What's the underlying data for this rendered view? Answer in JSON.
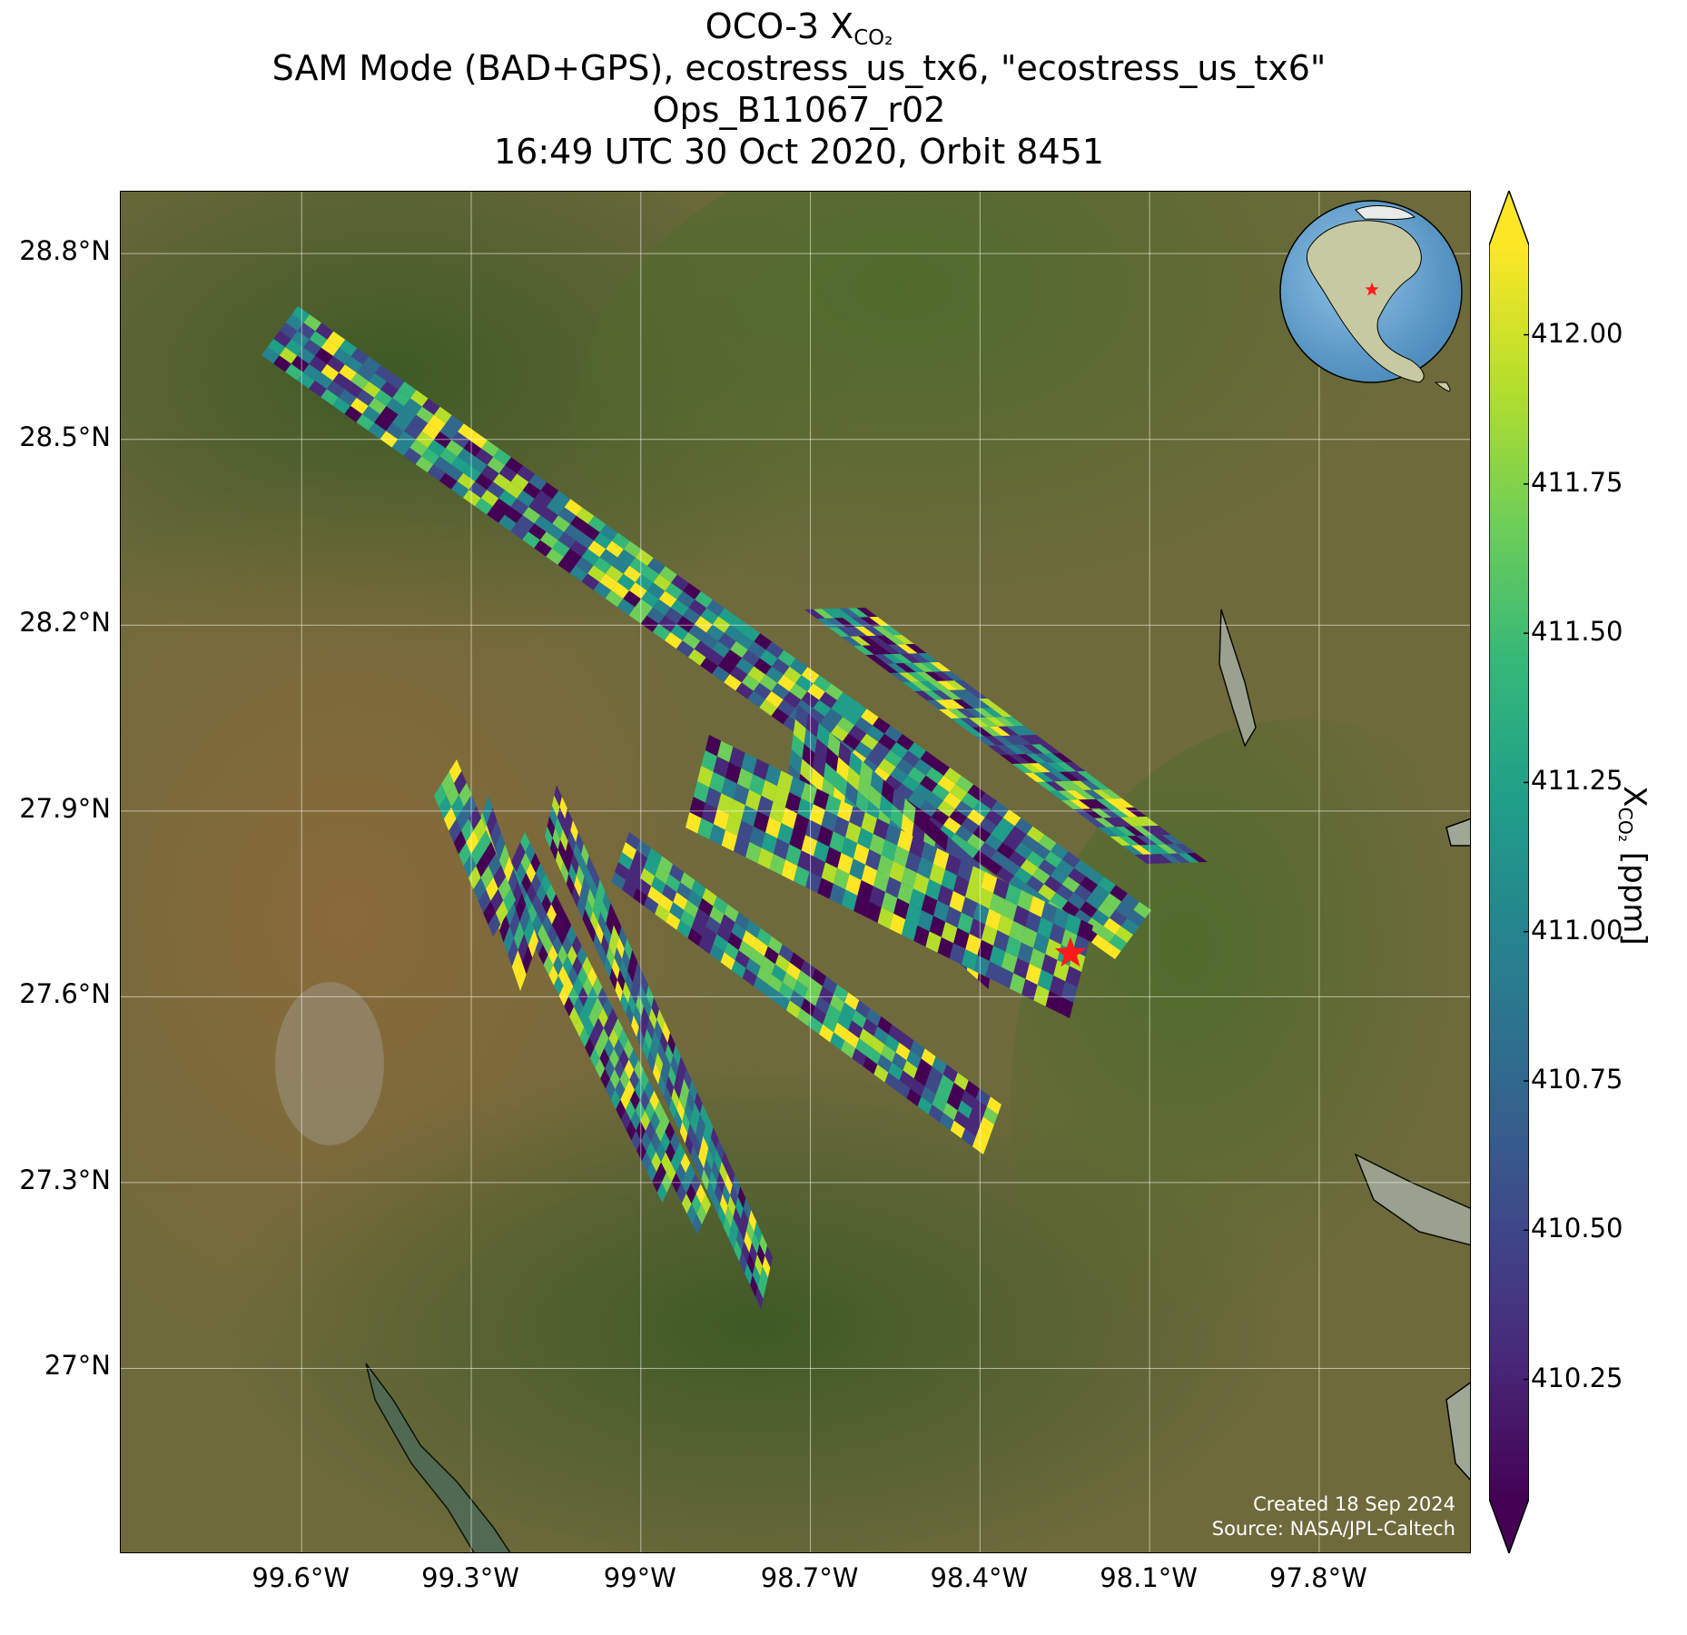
{
  "title": {
    "line1_main": "OCO-3 X",
    "line1_sub": "CO₂",
    "line2": "SAM Mode (BAD+GPS), ecostress_us_tx6, \"ecostress_us_tx6\"",
    "line3": "Ops_B11067_r02",
    "line4": "16:49 UTC 30 Oct 2020, Orbit 8451"
  },
  "credit": {
    "created": "Created 18 Sep 2024",
    "source": "Source: NASA/JPL-Caltech"
  },
  "map": {
    "extent": {
      "lon_min": -99.92,
      "lon_max": -97.53,
      "lat_min": 26.7,
      "lat_max": 28.9
    },
    "lat_ticks": [
      28.8,
      28.5,
      28.2,
      27.9,
      27.6,
      27.3,
      27.0
    ],
    "lat_labels": [
      "28.8°N",
      "28.5°N",
      "28.2°N",
      "27.9°N",
      "27.6°N",
      "27.3°N",
      "27°N"
    ],
    "lon_ticks": [
      -99.6,
      -99.3,
      -99.0,
      -98.7,
      -98.4,
      -98.1,
      -97.8
    ],
    "lon_labels": [
      "99.6°W",
      "99.3°W",
      "99°W",
      "98.7°W",
      "98.4°W",
      "98.1°W",
      "97.8°W"
    ],
    "target_site": {
      "lon": -98.24,
      "lat": 27.67,
      "symbol": "red-star"
    },
    "background": "satellite imagery",
    "grid": true
  },
  "colorbar": {
    "label_main": "X",
    "label_sub": "CO₂",
    "label_unit": " [ppm]",
    "colormap": "viridis",
    "vmin": 410.05,
    "vmax": 412.15,
    "extend": "both",
    "ticks": [
      412.0,
      411.75,
      411.5,
      411.25,
      411.0,
      410.75,
      410.5,
      410.25
    ],
    "tick_labels": [
      "412.00",
      "411.75",
      "411.50",
      "411.25",
      "411.00",
      "410.75",
      "410.50",
      "410.25"
    ],
    "colors": [
      "#440154",
      "#482878",
      "#3e4989",
      "#31688e",
      "#26828e",
      "#1f9e89",
      "#35b779",
      "#6ece58",
      "#b5de2b",
      "#fde725"
    ]
  },
  "inset_globe": {
    "content": "North America",
    "marker": "red-star"
  }
}
